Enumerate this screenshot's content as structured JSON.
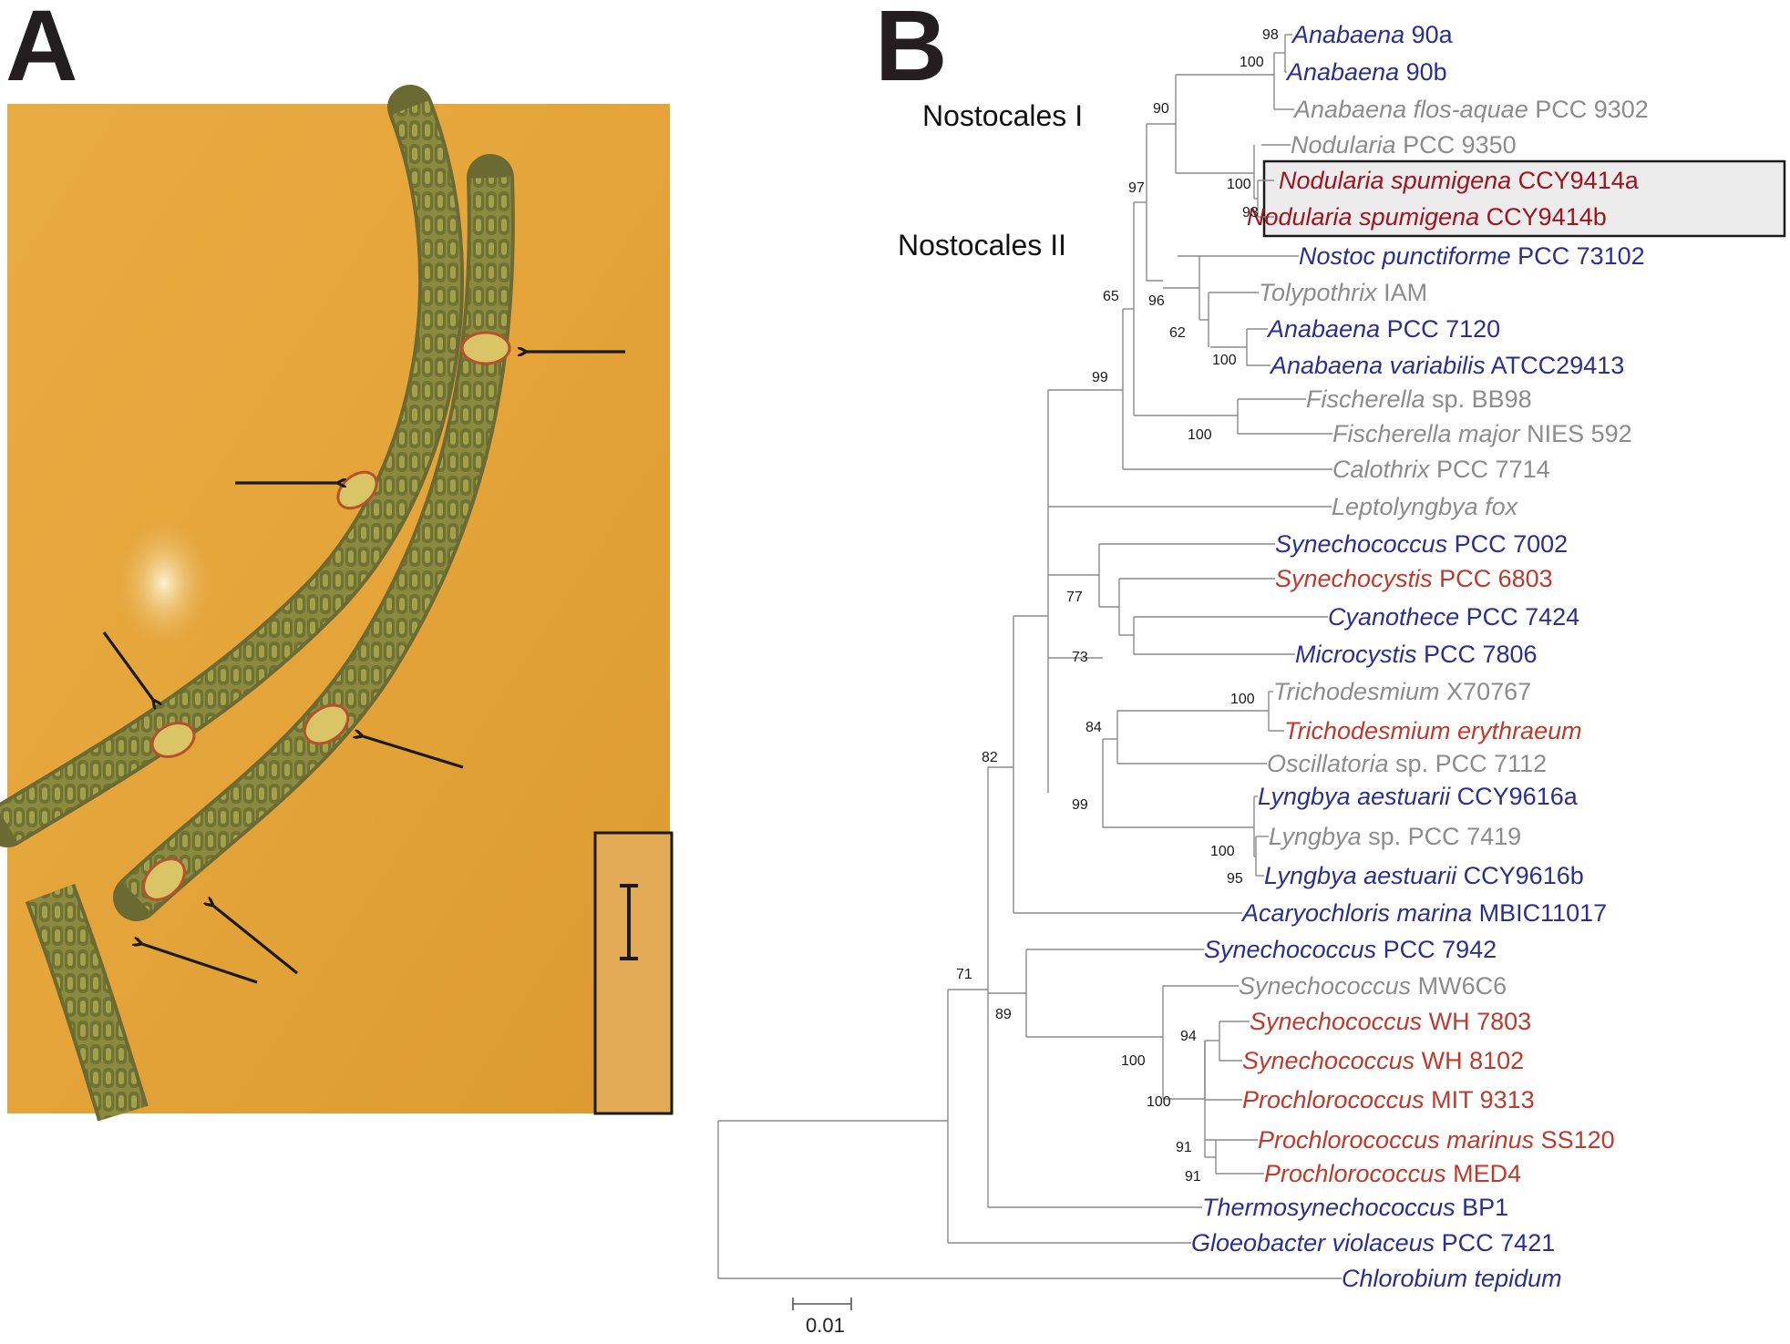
{
  "panels": {
    "a": "A",
    "b": "B"
  },
  "clades": {
    "nostocales_1": "Nostocales I",
    "nostocales_2": "Nostocales II"
  },
  "colors": {
    "blue": "#2b2f8f",
    "gray": "#8c8c8c",
    "red": "#c0392b",
    "highlight_red": "#a0141e",
    "photo_bg": "#e8a93c"
  },
  "taxa": [
    {
      "italic": "Anabaena",
      "rest": "90a",
      "color": "#2b2f8f"
    },
    {
      "italic": "Anabaena",
      "rest": "90b",
      "color": "#2b2f8f"
    },
    {
      "italic": "Anabaena flos-aquae",
      "rest": "PCC 9302",
      "color": "#8c8c8c"
    },
    {
      "italic": "Nodularia",
      "rest": "PCC 9350",
      "color": "#8c8c8c"
    },
    {
      "italic": "Nodularia spumigena",
      "rest": "CCY9414a",
      "color": "#a0141e"
    },
    {
      "italic": "Nodularia spumigena",
      "rest": "CCY9414b",
      "color": "#a0141e"
    },
    {
      "italic": "Nostoc punctiforme",
      "rest": "PCC 73102",
      "color": "#2b2f8f"
    },
    {
      "italic": "Tolypothrix",
      "rest": "IAM",
      "color": "#8c8c8c"
    },
    {
      "italic": "Anabaena",
      "rest": "PCC 7120",
      "color": "#2b2f8f"
    },
    {
      "italic": "Anabaena variabilis",
      "rest": "ATCC29413",
      "color": "#2b2f8f"
    },
    {
      "italic": "Fischerella",
      "rest": "sp. BB98",
      "color": "#8c8c8c"
    },
    {
      "italic": "Fischerella major",
      "rest": "NIES 592",
      "color": "#8c8c8c"
    },
    {
      "italic": "Calothrix",
      "rest": "PCC 7714",
      "color": "#8c8c8c"
    },
    {
      "italic": "Leptolyngbya fox",
      "rest": "",
      "color": "#8c8c8c"
    },
    {
      "italic": "Synechococcus",
      "rest": "PCC 7002",
      "color": "#2b2f8f"
    },
    {
      "italic": "Synechocystis",
      "rest": "PCC 6803",
      "color": "#c0392b"
    },
    {
      "italic": "Cyanothece",
      "rest": "PCC 7424",
      "color": "#2b2f8f"
    },
    {
      "italic": "Microcystis",
      "rest": "PCC 7806",
      "color": "#2b2f8f"
    },
    {
      "italic": "Trichodesmium",
      "rest": "X70767",
      "color": "#8c8c8c"
    },
    {
      "italic": "Trichodesmium erythraeum",
      "rest": "",
      "color": "#c0392b"
    },
    {
      "italic": "Oscillatoria",
      "rest": "sp. PCC 7112",
      "color": "#8c8c8c"
    },
    {
      "italic": "Lyngbya aestuarii",
      "rest": "CCY9616a",
      "color": "#2b2f8f"
    },
    {
      "italic": "Lyngbya",
      "rest": "sp. PCC 7419",
      "color": "#8c8c8c"
    },
    {
      "italic": "Lyngbya aestuarii",
      "rest": "CCY9616b",
      "color": "#2b2f8f"
    },
    {
      "italic": "Acaryochloris marina",
      "rest": "MBIC11017",
      "color": "#2b2f8f"
    },
    {
      "italic": "Synechococcus",
      "rest": "PCC 7942",
      "color": "#2b2f8f"
    },
    {
      "italic": "Synechococcus",
      "rest": "MW6C6",
      "color": "#8c8c8c"
    },
    {
      "italic": "Synechococcus",
      "rest": "WH 7803",
      "color": "#c0392b"
    },
    {
      "italic": "Synechococcus",
      "rest": "WH 8102",
      "color": "#c0392b"
    },
    {
      "italic": "Prochlorococcus",
      "rest": "MIT 9313",
      "color": "#c0392b"
    },
    {
      "italic": "Prochlorococcus marinus",
      "rest": "SS120",
      "color": "#c0392b"
    },
    {
      "italic": "Prochlorococcus",
      "rest": "MED4",
      "color": "#c0392b"
    },
    {
      "italic": "Thermosynechococcus",
      "rest": "BP1",
      "color": "#2b2f8f"
    },
    {
      "italic": "Gloeobacter violaceus",
      "rest": "PCC 7421",
      "color": "#2b2f8f"
    },
    {
      "italic": "Chlorobium tepidum",
      "rest": "",
      "color": "#2b2f8f"
    }
  ],
  "bootstrap": [
    "98",
    "100",
    "90",
    "100",
    "93",
    "97",
    "65",
    "96",
    "62",
    "100",
    "99",
    "100",
    "77",
    "73",
    "100",
    "84",
    "99",
    "100",
    "95",
    "82",
    "71",
    "89",
    "94",
    "100",
    "100",
    "91",
    "91"
  ],
  "scale_bar": {
    "label": "0.01"
  }
}
